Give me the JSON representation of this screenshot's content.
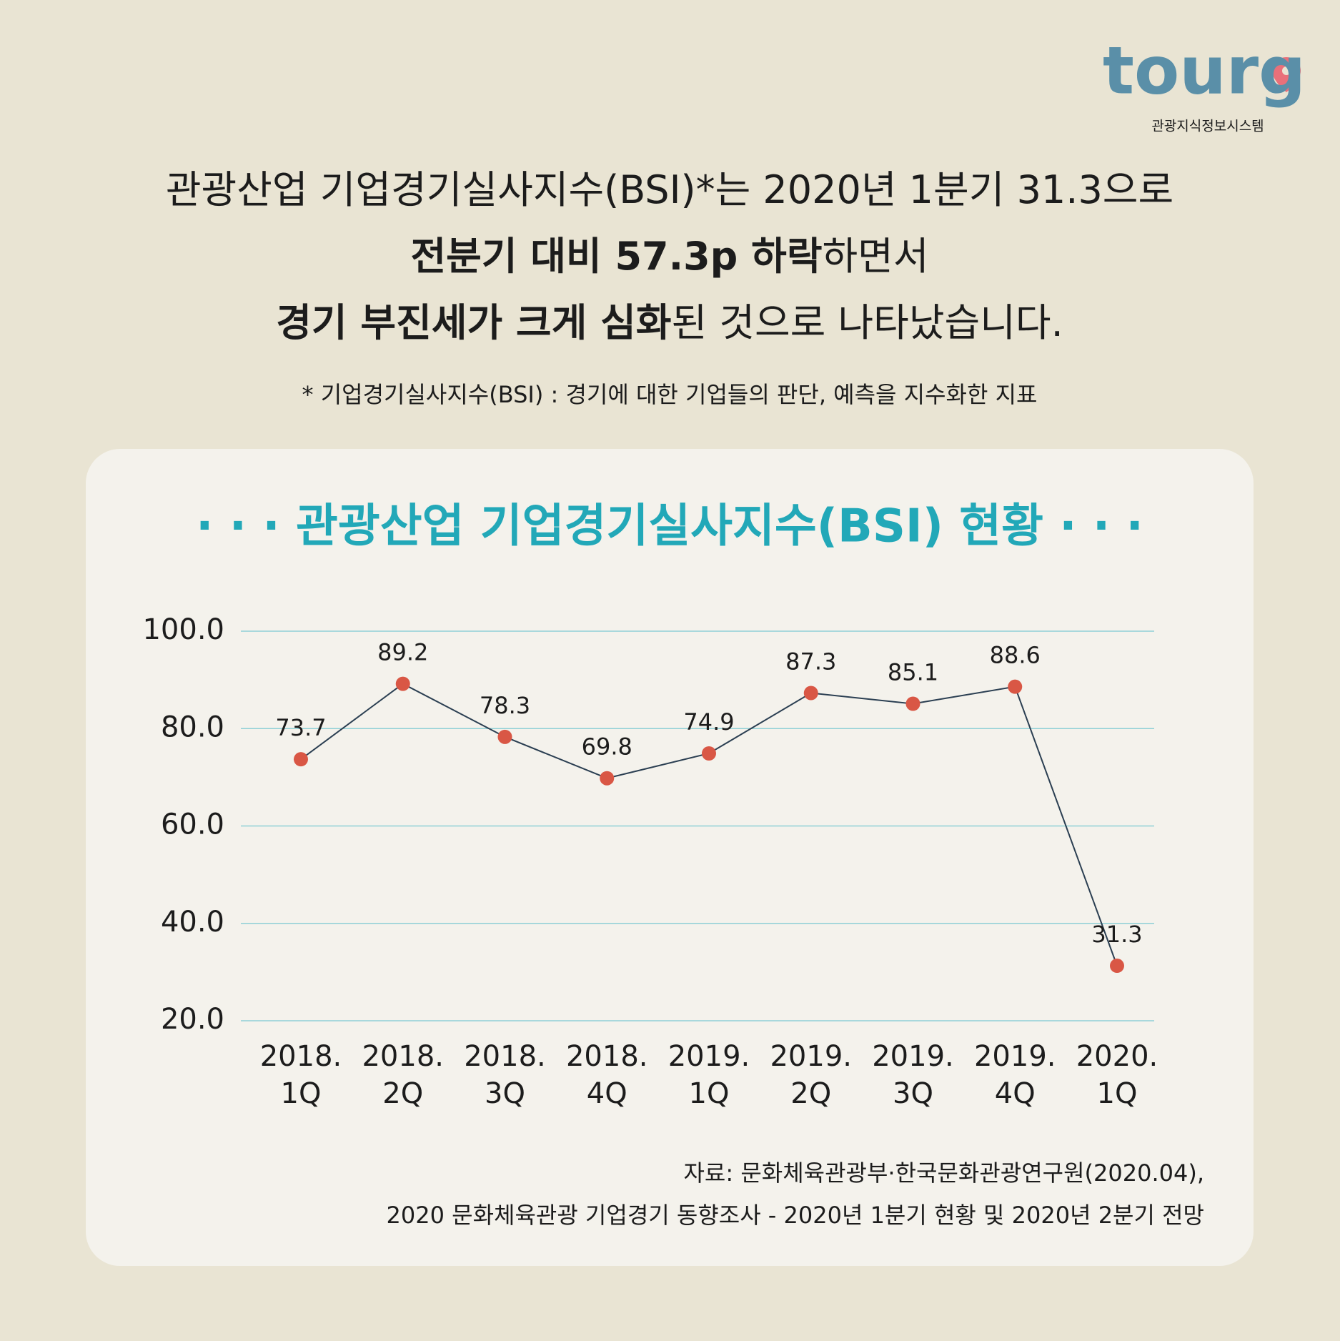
{
  "logo": {
    "text": "tourg",
    "subtitle": "관광지식정보시스템"
  },
  "headline": [
    [
      {
        "text": "관광산업 기업경기실사지수(BSI)*는 2020년 1분기 31.3으로",
        "bold": false
      }
    ],
    [
      {
        "text": "전분기 대비 57.3p 하락",
        "bold": true
      },
      {
        "text": "하면서",
        "bold": false
      }
    ],
    [
      {
        "text": "경기 부진세가 크게 심화",
        "bold": true
      },
      {
        "text": "된 것으로 나타났습니다.",
        "bold": false
      }
    ]
  ],
  "note": "* 기업경기실사지수(BSI) : 경기에 대한 기업들의 판단, 예측을 지수화한 지표",
  "chart_data": {
    "type": "line",
    "title": "· · · 관광산업 기업경기실사지수(BSI) 현황 · · ·",
    "categories": [
      "2018.\n1Q",
      "2018.\n2Q",
      "2018.\n3Q",
      "2018.\n4Q",
      "2019.\n1Q",
      "2019.\n2Q",
      "2019.\n3Q",
      "2019.\n4Q",
      "2020.\n1Q"
    ],
    "values": [
      73.7,
      89.2,
      78.3,
      69.8,
      74.9,
      87.3,
      85.1,
      88.6,
      31.3
    ],
    "color": "#d95745",
    "line_color": "#2b3f52",
    "ylim": [
      20,
      100
    ],
    "yticks": [
      {
        "value": 20,
        "label": "20.0"
      },
      {
        "value": 40,
        "label": "40.0"
      },
      {
        "value": 60,
        "label": "60.0"
      },
      {
        "value": 80,
        "label": "80.0"
      },
      {
        "value": 100,
        "label": "100.0"
      }
    ],
    "grid": true,
    "grid_color": "#8fd0d6"
  },
  "source": [
    "자료: 문화체육관광부·한국문화관광연구원(2020.04),",
    "2020 문화체육관광 기업경기 동향조사 - 2020년 1분기 현황 및 2020년 2분기 전망"
  ]
}
